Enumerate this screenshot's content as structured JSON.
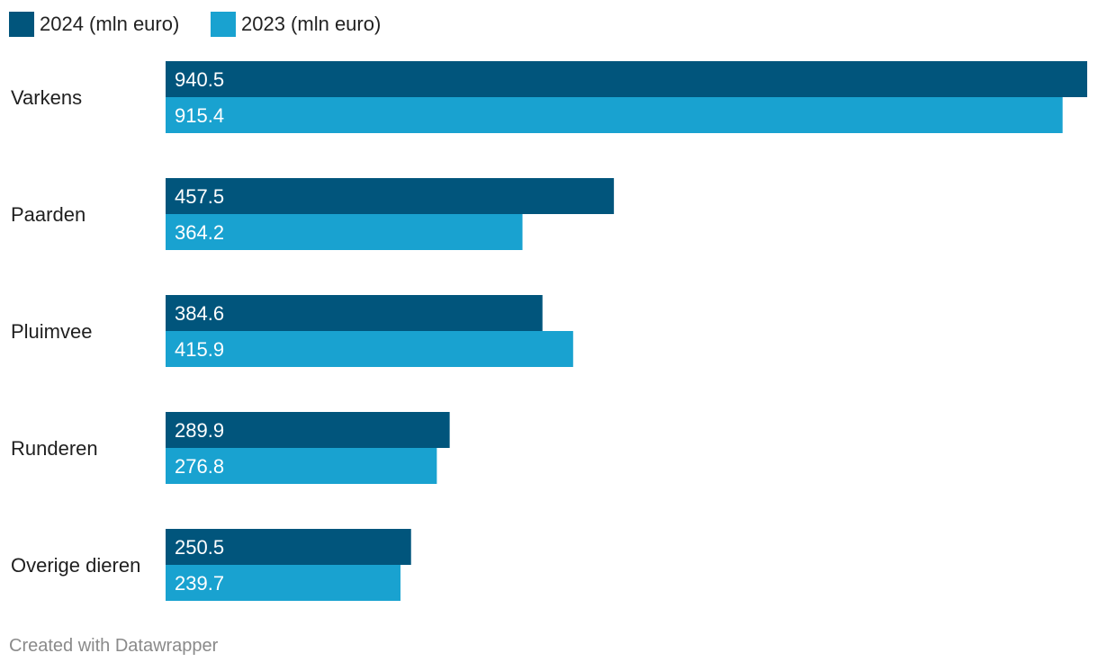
{
  "chart_data": {
    "type": "bar",
    "orientation": "horizontal",
    "categories": [
      "Varkens",
      "Paarden",
      "Pluimvee",
      "Runderen",
      "Overige dieren"
    ],
    "series": [
      {
        "name": "2024 (mln euro)",
        "color": "#01557c",
        "values": [
          940.5,
          457.5,
          384.6,
          289.9,
          250.5
        ]
      },
      {
        "name": "2023 (mln euro)",
        "color": "#19a2d0",
        "values": [
          915.4,
          364.2,
          415.9,
          276.8,
          239.7
        ]
      }
    ],
    "xlim": [
      0,
      940.5
    ],
    "grid": false,
    "legend": "top-left"
  },
  "footer": {
    "credit": "Created with Datawrapper"
  }
}
